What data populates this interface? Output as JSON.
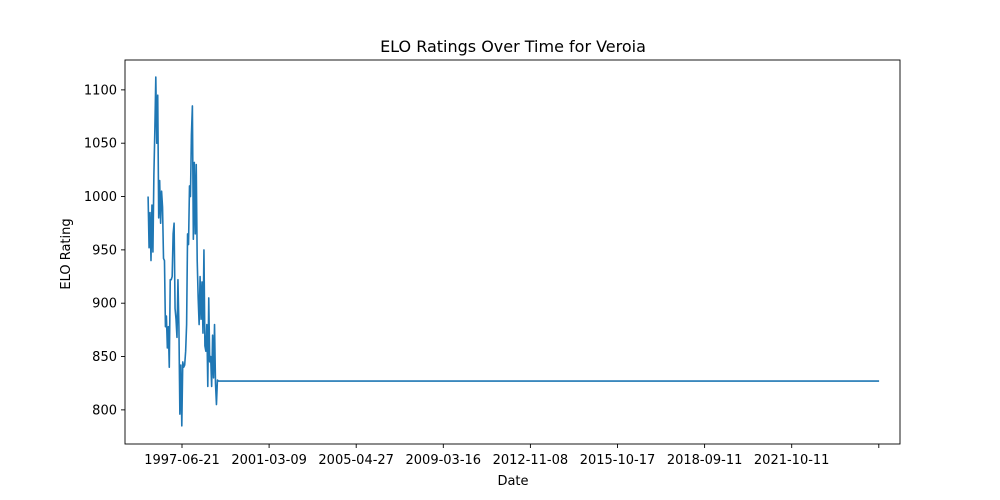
{
  "chart_data": {
    "type": "line",
    "title": "ELO Ratings Over Time for Veroia",
    "xlabel": "Date",
    "ylabel": "ELO Rating",
    "x_tick_labels": [
      "1997-06-21",
      "2001-03-09",
      "2005-04-27",
      "2009-03-16",
      "2012-11-08",
      "2015-10-17",
      "2018-09-11",
      "2021-10-11",
      ""
    ],
    "y_ticks": [
      800,
      850,
      900,
      950,
      1000,
      1050,
      1100
    ],
    "ylim": [
      768,
      1128
    ],
    "xlim": [
      "1995-05-01",
      "2026-03-10"
    ],
    "grid": false,
    "series": [
      {
        "color": "#1f77b4",
        "x": [
          "1996-04-01",
          "1996-04-15",
          "1996-04-29",
          "1996-05-13",
          "1996-05-27",
          "1996-06-10",
          "1996-06-24",
          "1996-07-08",
          "1996-07-22",
          "1996-08-05",
          "1996-08-19",
          "1996-09-02",
          "1996-09-16",
          "1996-09-30",
          "1996-10-14",
          "1996-10-28",
          "1996-11-11",
          "1996-11-25",
          "1996-12-09",
          "1996-12-23",
          "1997-01-06",
          "1997-01-20",
          "1997-02-03",
          "1997-02-17",
          "1997-03-03",
          "1997-03-17",
          "1997-03-31",
          "1997-04-14",
          "1997-04-28",
          "1997-05-12",
          "1997-05-26",
          "1997-06-09",
          "1997-06-23",
          "1997-07-07",
          "1997-07-21",
          "1997-08-04",
          "1997-08-18",
          "1997-09-01",
          "1997-09-15",
          "1997-09-29",
          "1997-10-13",
          "1997-10-27",
          "1997-11-10",
          "1997-11-24",
          "1997-12-08",
          "1997-12-22",
          "1998-01-05",
          "1998-01-19",
          "1998-02-02",
          "1998-02-16",
          "1998-03-02",
          "1998-03-16",
          "1998-03-30",
          "1998-04-13",
          "1998-04-27",
          "1998-05-11",
          "1998-05-25",
          "1998-06-08",
          "1998-06-22",
          "1998-07-06",
          "1998-07-20",
          "1998-08-03",
          "1998-08-17",
          "1998-08-31",
          "1998-09-14",
          "1998-09-28",
          "1998-10-12",
          "1998-10-26",
          "1998-11-09",
          "1998-11-23",
          "1998-12-07",
          "1998-12-21",
          "1999-01-04",
          "1999-01-18",
          "1999-02-01",
          "1999-02-15",
          "1999-03-01",
          "1999-03-15",
          "1999-03-29",
          "1999-04-12",
          "1999-04-26",
          "1999-05-10",
          "1999-05-24",
          "1999-06-07",
          "1999-06-21",
          "1999-07-05",
          "1999-07-19",
          "1999-08-02",
          "1999-08-16",
          "1999-08-30",
          "1999-09-13",
          "1999-09-27",
          "1999-10-11",
          "1999-10-25",
          "1999-11-08",
          "1999-11-22",
          "1999-12-06",
          "1999-12-20",
          "2000-01-03",
          "2000-01-17",
          "2000-01-31",
          "2000-02-14",
          "2000-02-28",
          "2000-03-13",
          "2000-03-27",
          "2000-04-10",
          "2000-04-24",
          "2000-05-08",
          "2025-05-10"
        ],
        "values": [
          1000,
          952,
          985,
          940,
          992,
          948,
          1020,
          1062,
          1112,
          1050,
          1095,
          980,
          1015,
          975,
          1005,
          990,
          942,
          940,
          878,
          888,
          858,
          878,
          840,
          922,
          922,
          925,
          965,
          975,
          895,
          885,
          868,
          922,
          878,
          796,
          842,
          785,
          845,
          840,
          842,
          855,
          880,
          965,
          955,
          1010,
          1000,
          1058,
          1085,
          960,
          1032,
          965,
          1030,
          940,
          905,
          880,
          925,
          885,
          920,
          872,
          950,
          860,
          855,
          880,
          822,
          905,
          845,
          850,
          822,
          870,
          830,
          880,
          825,
          805,
          828,
          827,
          827,
          827,
          827,
          827,
          827,
          827,
          827,
          827,
          827,
          827,
          827,
          827,
          827,
          827,
          827,
          827,
          827,
          827,
          827,
          827,
          827,
          827,
          827,
          827,
          827,
          827,
          827,
          827,
          827,
          827,
          827,
          827,
          827,
          827,
          827
        ]
      }
    ]
  }
}
